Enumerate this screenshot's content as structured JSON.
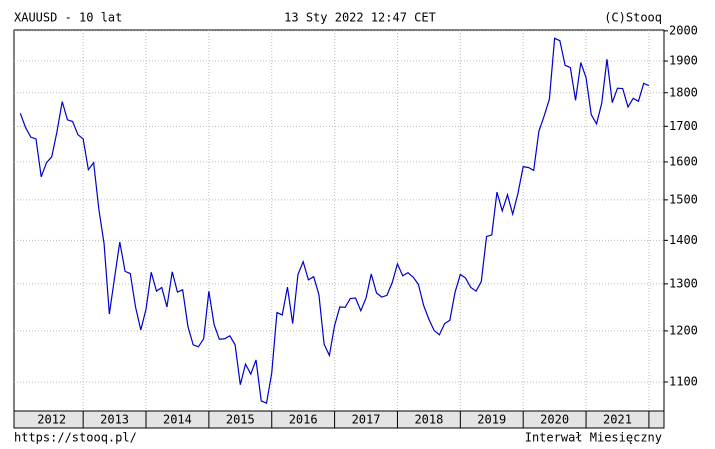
{
  "chart_data": {
    "type": "line",
    "title": "XAUUSD - 10 lat",
    "subtitle": "13 Sty 2022 12:47 CET",
    "copyright": "(C)Stooq",
    "source": "https://stooq.pl/",
    "interval": "Interwał Miesięczny",
    "x": [
      2012,
      2012.083,
      2012.167,
      2012.25,
      2012.333,
      2012.417,
      2012.5,
      2012.583,
      2012.667,
      2012.75,
      2012.833,
      2012.917,
      2013,
      2013.083,
      2013.167,
      2013.25,
      2013.333,
      2013.417,
      2013.5,
      2013.583,
      2013.667,
      2013.75,
      2013.833,
      2013.917,
      2014,
      2014.083,
      2014.167,
      2014.25,
      2014.333,
      2014.417,
      2014.5,
      2014.583,
      2014.667,
      2014.75,
      2014.833,
      2014.917,
      2015,
      2015.083,
      2015.167,
      2015.25,
      2015.333,
      2015.417,
      2015.5,
      2015.583,
      2015.667,
      2015.75,
      2015.833,
      2015.917,
      2016,
      2016.083,
      2016.167,
      2016.25,
      2016.333,
      2016.417,
      2016.5,
      2016.583,
      2016.667,
      2016.75,
      2016.833,
      2016.917,
      2017,
      2017.083,
      2017.167,
      2017.25,
      2017.333,
      2017.417,
      2017.5,
      2017.583,
      2017.667,
      2017.75,
      2017.833,
      2017.917,
      2018,
      2018.083,
      2018.167,
      2018.25,
      2018.333,
      2018.417,
      2018.5,
      2018.583,
      2018.667,
      2018.75,
      2018.833,
      2018.917,
      2019,
      2019.083,
      2019.167,
      2019.25,
      2019.333,
      2019.417,
      2019.5,
      2019.583,
      2019.667,
      2019.75,
      2019.833,
      2019.917,
      2020,
      2020.083,
      2020.167,
      2020.25,
      2020.333,
      2020.417,
      2020.5,
      2020.583,
      2020.667,
      2020.75,
      2020.833,
      2020.917,
      2021,
      2021.083,
      2021.167,
      2021.25,
      2021.333,
      2021.417,
      2021.5,
      2021.583,
      2021.667,
      2021.75,
      2021.833,
      2021.917,
      2022
    ],
    "series": [
      {
        "color": "#0000cc",
        "values": [
          1738,
          1697,
          1669,
          1664,
          1560,
          1598,
          1614,
          1684,
          1773,
          1719,
          1714,
          1676,
          1664,
          1579,
          1598,
          1476,
          1392,
          1235,
          1314,
          1396,
          1328,
          1323,
          1250,
          1202,
          1245,
          1326,
          1284,
          1292,
          1250,
          1327,
          1282,
          1287,
          1209,
          1172,
          1168,
          1184,
          1284,
          1213,
          1183,
          1184,
          1190,
          1172,
          1095,
          1134,
          1115,
          1142,
          1065,
          1061,
          1117,
          1238,
          1233,
          1293,
          1215,
          1321,
          1350,
          1309,
          1316,
          1277,
          1173,
          1151,
          1211,
          1250,
          1249,
          1268,
          1269,
          1242,
          1269,
          1322,
          1280,
          1271,
          1275,
          1303,
          1345,
          1318,
          1325,
          1315,
          1299,
          1253,
          1224,
          1201,
          1192,
          1215,
          1222,
          1282,
          1321,
          1313,
          1292,
          1284,
          1305,
          1409,
          1413,
          1520,
          1472,
          1513,
          1464,
          1517,
          1587,
          1585,
          1577,
          1686,
          1730,
          1781,
          1975,
          1967,
          1886,
          1879,
          1777,
          1895,
          1847,
          1734,
          1707,
          1769,
          1906,
          1770,
          1814,
          1813,
          1757,
          1783,
          1774,
          1829,
          1822
        ]
      }
    ],
    "xlim": [
      2011.9,
      2022.24
    ],
    "xticks": [
      2013,
      2014,
      2015,
      2016,
      2017,
      2018,
      2019,
      2020,
      2021,
      2022
    ],
    "xlabels": [
      2012,
      2013,
      2014,
      2015,
      2016,
      2017,
      2018,
      2019,
      2020,
      2021
    ],
    "ylim": [
      1047,
      2003
    ],
    "yticks": [
      1100,
      1200,
      1300,
      1400,
      1500,
      1600,
      1700,
      1800,
      1900,
      2000
    ],
    "log_y": true,
    "grid": true
  }
}
